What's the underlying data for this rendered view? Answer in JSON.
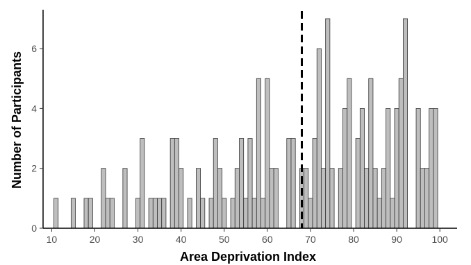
{
  "chart_data": {
    "type": "bar",
    "xlabel": "Area Deprivation Index",
    "ylabel": "Number of Participants",
    "xlim": [
      8,
      104
    ],
    "ylim": [
      0,
      7.3
    ],
    "x_ticks": [
      10,
      20,
      30,
      40,
      50,
      60,
      70,
      80,
      90,
      100
    ],
    "y_ticks": [
      0,
      2,
      4,
      6
    ],
    "grid": false,
    "bin_width": 1,
    "reference_line": {
      "x": 68,
      "style": "dashed"
    },
    "bins": [
      {
        "x": 11,
        "count": 1
      },
      {
        "x": 12,
        "count": 0
      },
      {
        "x": 13,
        "count": 0
      },
      {
        "x": 14,
        "count": 0
      },
      {
        "x": 15,
        "count": 1
      },
      {
        "x": 16,
        "count": 0
      },
      {
        "x": 17,
        "count": 0
      },
      {
        "x": 18,
        "count": 1
      },
      {
        "x": 19,
        "count": 1
      },
      {
        "x": 20,
        "count": 0
      },
      {
        "x": 21,
        "count": 0
      },
      {
        "x": 22,
        "count": 2
      },
      {
        "x": 23,
        "count": 1
      },
      {
        "x": 24,
        "count": 1
      },
      {
        "x": 25,
        "count": 0
      },
      {
        "x": 26,
        "count": 0
      },
      {
        "x": 27,
        "count": 2
      },
      {
        "x": 28,
        "count": 0
      },
      {
        "x": 29,
        "count": 0
      },
      {
        "x": 30,
        "count": 1
      },
      {
        "x": 31,
        "count": 3
      },
      {
        "x": 32,
        "count": 0
      },
      {
        "x": 33,
        "count": 1
      },
      {
        "x": 34,
        "count": 1
      },
      {
        "x": 35,
        "count": 1
      },
      {
        "x": 36,
        "count": 1
      },
      {
        "x": 37,
        "count": 0
      },
      {
        "x": 38,
        "count": 3
      },
      {
        "x": 39,
        "count": 3
      },
      {
        "x": 40,
        "count": 2
      },
      {
        "x": 41,
        "count": 0
      },
      {
        "x": 42,
        "count": 1
      },
      {
        "x": 43,
        "count": 0
      },
      {
        "x": 44,
        "count": 2
      },
      {
        "x": 45,
        "count": 1
      },
      {
        "x": 46,
        "count": 0
      },
      {
        "x": 47,
        "count": 1
      },
      {
        "x": 48,
        "count": 3
      },
      {
        "x": 49,
        "count": 2
      },
      {
        "x": 50,
        "count": 1
      },
      {
        "x": 51,
        "count": 0
      },
      {
        "x": 52,
        "count": 1
      },
      {
        "x": 53,
        "count": 2
      },
      {
        "x": 54,
        "count": 3
      },
      {
        "x": 55,
        "count": 1
      },
      {
        "x": 56,
        "count": 3
      },
      {
        "x": 57,
        "count": 1
      },
      {
        "x": 58,
        "count": 5
      },
      {
        "x": 59,
        "count": 1
      },
      {
        "x": 60,
        "count": 5
      },
      {
        "x": 61,
        "count": 2
      },
      {
        "x": 62,
        "count": 2
      },
      {
        "x": 63,
        "count": 0
      },
      {
        "x": 64,
        "count": 0
      },
      {
        "x": 65,
        "count": 3
      },
      {
        "x": 66,
        "count": 3
      },
      {
        "x": 67,
        "count": 0
      },
      {
        "x": 68,
        "count": 2
      },
      {
        "x": 69,
        "count": 2
      },
      {
        "x": 70,
        "count": 1
      },
      {
        "x": 71,
        "count": 3
      },
      {
        "x": 72,
        "count": 6
      },
      {
        "x": 73,
        "count": 2
      },
      {
        "x": 74,
        "count": 7
      },
      {
        "x": 75,
        "count": 2
      },
      {
        "x": 76,
        "count": 0
      },
      {
        "x": 77,
        "count": 2
      },
      {
        "x": 78,
        "count": 4
      },
      {
        "x": 79,
        "count": 5
      },
      {
        "x": 80,
        "count": 0
      },
      {
        "x": 81,
        "count": 3
      },
      {
        "x": 82,
        "count": 4
      },
      {
        "x": 83,
        "count": 2
      },
      {
        "x": 84,
        "count": 5
      },
      {
        "x": 85,
        "count": 2
      },
      {
        "x": 86,
        "count": 1
      },
      {
        "x": 87,
        "count": 2
      },
      {
        "x": 88,
        "count": 4
      },
      {
        "x": 89,
        "count": 1
      },
      {
        "x": 90,
        "count": 4
      },
      {
        "x": 91,
        "count": 5
      },
      {
        "x": 92,
        "count": 7
      },
      {
        "x": 93,
        "count": 0
      },
      {
        "x": 94,
        "count": 0
      },
      {
        "x": 95,
        "count": 4
      },
      {
        "x": 96,
        "count": 2
      },
      {
        "x": 97,
        "count": 2
      },
      {
        "x": 98,
        "count": 4
      },
      {
        "x": 99,
        "count": 4
      }
    ],
    "colors": {
      "bar_fill": "#bebebe",
      "bar_stroke": "#333333",
      "axis": "#000000",
      "reference_line": "#000000"
    }
  }
}
